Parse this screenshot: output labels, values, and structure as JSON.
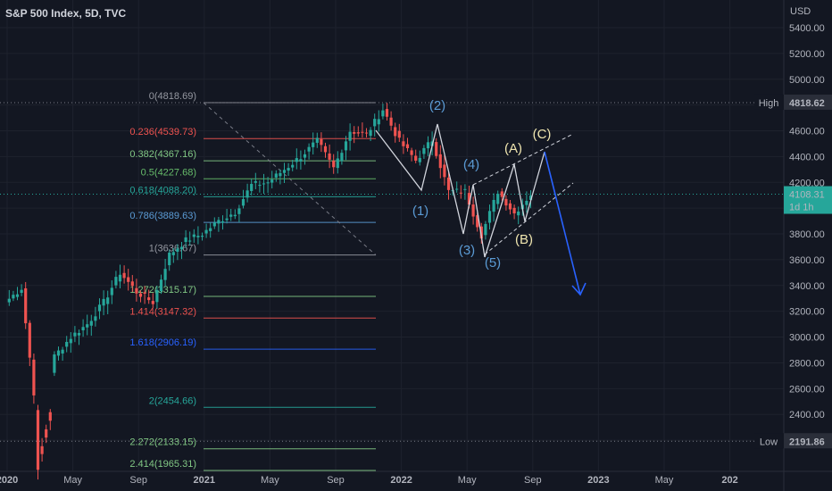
{
  "title": "S&P 500 Index, 5D, TVC",
  "currency": "USD",
  "colors": {
    "up": "#26a69a",
    "down": "#ef5350",
    "bg": "#131722",
    "wave_blue": "#5b9bd5",
    "wave_yellow": "#f0e6b0",
    "projection": "#2962ff"
  },
  "price_axis": {
    "min": 1900,
    "max": 5500,
    "ticks": [
      "5400.00",
      "5200.00",
      "5000.00",
      "4800.00",
      "4600.00",
      "4400.00",
      "4200.00",
      "4000.00",
      "3800.00",
      "3600.00",
      "3400.00",
      "3200.00",
      "3000.00",
      "2800.00",
      "2600.00",
      "2400.00",
      "2200.00"
    ]
  },
  "time_axis": {
    "labels": [
      "2020",
      "May",
      "Sep",
      "2021",
      "May",
      "Sep",
      "2022",
      "May",
      "Sep",
      "2023",
      "May",
      "202"
    ]
  },
  "badges": {
    "high_label": "High",
    "high_value": "4818.62",
    "current_value": "4108.31",
    "current_countdown": "1d 1h",
    "low_label": "Low",
    "low_value": "2191.86"
  },
  "fib_levels": [
    {
      "label": "0(4818.69)",
      "price": 4818.69,
      "color": "#9598a1"
    },
    {
      "label": "0.236(4539.73)",
      "price": 4539.73,
      "color": "#ef5350"
    },
    {
      "label": "0.382(4367.16)",
      "price": 4367.16,
      "color": "#81c784"
    },
    {
      "label": "0.5(4227.68)",
      "price": 4227.68,
      "color": "#66bb6a"
    },
    {
      "label": "0.618(4088.20)",
      "price": 4088.2,
      "color": "#26a69a"
    },
    {
      "label": "0.786(3889.63)",
      "price": 3889.63,
      "color": "#5b9bd5"
    },
    {
      "label": "1(3636.67)",
      "price": 3636.67,
      "color": "#9598a1"
    },
    {
      "label": "1.272(3315.17)",
      "price": 3315.17,
      "color": "#81c784"
    },
    {
      "label": "1.414(3147.32)",
      "price": 3147.32,
      "color": "#ef5350"
    },
    {
      "label": "1.618(2906.19)",
      "price": 2906.19,
      "color": "#2962ff"
    },
    {
      "label": "2(2454.66)",
      "price": 2454.66,
      "color": "#26a69a"
    },
    {
      "label": "2.272(2133.15)",
      "price": 2133.15,
      "color": "#81c784"
    },
    {
      "label": "2.414(1965.31)",
      "price": 1965.31,
      "color": "#81c784"
    }
  ],
  "wave_labels": [
    {
      "text": "(1)",
      "color": "blue"
    },
    {
      "text": "(2)",
      "color": "blue"
    },
    {
      "text": "(3)",
      "color": "blue"
    },
    {
      "text": "(4)",
      "color": "blue"
    },
    {
      "text": "(5)",
      "color": "blue"
    },
    {
      "text": "(A)",
      "color": "yellow"
    },
    {
      "text": "(B)",
      "color": "yellow"
    },
    {
      "text": "(C)",
      "color": "yellow"
    }
  ],
  "chart_data": {
    "type": "candlestick",
    "title": "S&P 500 Index, 5D, TVC",
    "ylabel": "USD",
    "ylim": [
      1900,
      5500
    ],
    "x_axis_labels": [
      "2020",
      "May",
      "Sep",
      "2021",
      "May",
      "Sep",
      "2022",
      "May",
      "Sep",
      "2023",
      "May",
      "202"
    ],
    "price_path": [
      {
        "date": "2020-01",
        "close": 3270
      },
      {
        "date": "2020-02",
        "close": 3380
      },
      {
        "date": "2020-03",
        "close": 2300
      },
      {
        "date": "2020-04",
        "close": 2850
      },
      {
        "date": "2020-05",
        "close": 3000
      },
      {
        "date": "2020-06",
        "close": 3100
      },
      {
        "date": "2020-07",
        "close": 3270
      },
      {
        "date": "2020-08",
        "close": 3500
      },
      {
        "date": "2020-09",
        "close": 3350
      },
      {
        "date": "2020-10",
        "close": 3270
      },
      {
        "date": "2020-11",
        "close": 3640
      },
      {
        "date": "2020-12",
        "close": 3750
      },
      {
        "date": "2021-01",
        "close": 3800
      },
      {
        "date": "2021-02",
        "close": 3900
      },
      {
        "date": "2021-03",
        "close": 3970
      },
      {
        "date": "2021-04",
        "close": 4180
      },
      {
        "date": "2021-05",
        "close": 4200
      },
      {
        "date": "2021-06",
        "close": 4300
      },
      {
        "date": "2021-07",
        "close": 4400
      },
      {
        "date": "2021-08",
        "close": 4520
      },
      {
        "date": "2021-09",
        "close": 4310
      },
      {
        "date": "2021-10",
        "close": 4600
      },
      {
        "date": "2021-11",
        "close": 4570
      },
      {
        "date": "2021-12",
        "close": 4766
      },
      {
        "date": "2022-01",
        "close": 4520
      },
      {
        "date": "2022-02",
        "close": 4370
      },
      {
        "date": "2022-03",
        "close": 4530
      },
      {
        "date": "2022-04",
        "close": 4130
      },
      {
        "date": "2022-05",
        "close": 4130
      },
      {
        "date": "2022-06",
        "close": 3790
      },
      {
        "date": "2022-07",
        "close": 4130
      },
      {
        "date": "2022-08",
        "close": 3960
      },
      {
        "date": "2022-09",
        "close": 4108.31
      }
    ],
    "high": 4818.62,
    "low": 2191.86,
    "last": 4108.31
  }
}
